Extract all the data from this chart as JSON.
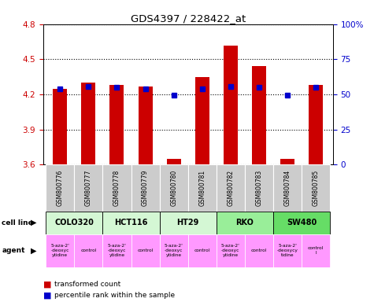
{
  "title": "GDS4397 / 228422_at",
  "samples": [
    "GSM800776",
    "GSM800777",
    "GSM800778",
    "GSM800779",
    "GSM800780",
    "GSM800781",
    "GSM800782",
    "GSM800783",
    "GSM800784",
    "GSM800785"
  ],
  "red_values": [
    4.25,
    4.3,
    4.28,
    4.27,
    3.65,
    4.35,
    4.62,
    4.44,
    3.65,
    4.28
  ],
  "blue_values": [
    4.25,
    4.27,
    4.26,
    4.25,
    4.19,
    4.25,
    4.27,
    4.26,
    4.19,
    4.26
  ],
  "ylim_left": [
    3.6,
    4.8
  ],
  "ylim_right": [
    0,
    100
  ],
  "yticks_left": [
    3.6,
    3.9,
    4.2,
    4.5,
    4.8
  ],
  "yticks_right": [
    0,
    25,
    50,
    75,
    100
  ],
  "cell_line_data": [
    {
      "name": "COLO320",
      "c1": 0,
      "c2": 1,
      "color": "#d4f7d4"
    },
    {
      "name": "HCT116",
      "c1": 2,
      "c2": 3,
      "color": "#d4f7d4"
    },
    {
      "name": "HT29",
      "c1": 4,
      "c2": 5,
      "color": "#d4f7d4"
    },
    {
      "name": "RKO",
      "c1": 6,
      "c2": 7,
      "color": "#99ee99"
    },
    {
      "name": "SW480",
      "c1": 8,
      "c2": 9,
      "color": "#66dd66"
    }
  ],
  "agent_names": [
    "5-aza-2'\n-deoxyc\nytidine",
    "control",
    "5-aza-2'\n-deoxyc\nytidine",
    "control",
    "5-aza-2'\n-deoxyc\nytidine",
    "control",
    "5-aza-2'\n-deoxyc\nytidine",
    "control",
    "5-aza-2'\n-deoxycy\ntidine",
    "control\nl"
  ],
  "bar_color": "#cc0000",
  "blue_color": "#0000cc",
  "bar_width": 0.5,
  "background_color": "#ffffff",
  "sample_bg_color": "#cccccc",
  "left_label_color": "#cc0000",
  "right_label_color": "#0000cc",
  "agent_color": "#ff99ff"
}
